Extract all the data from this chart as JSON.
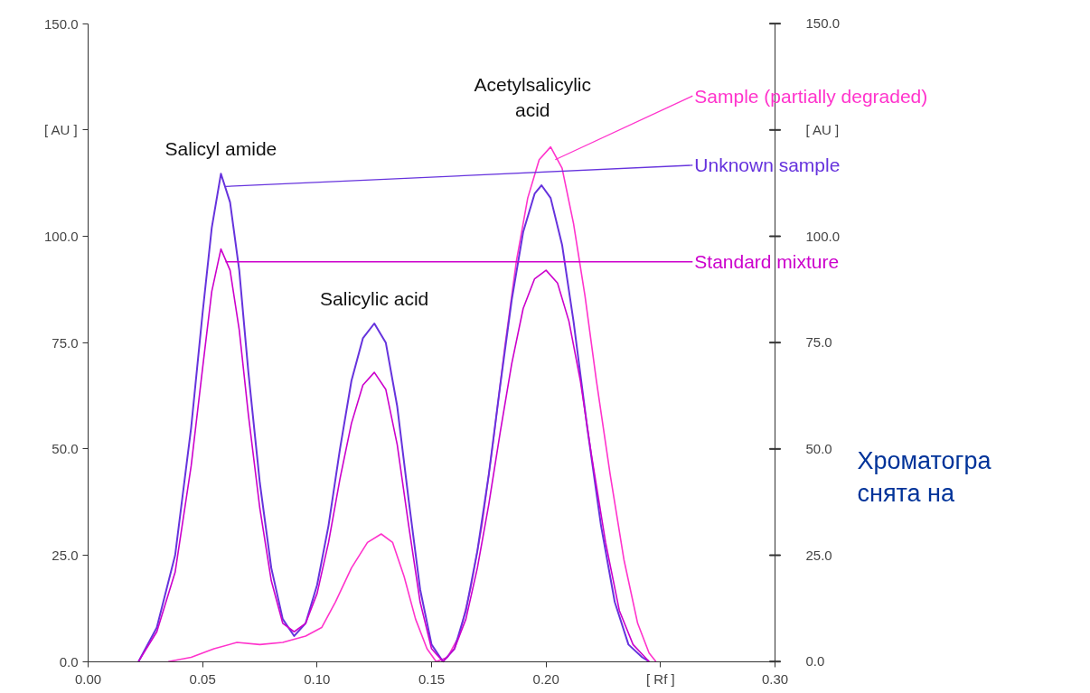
{
  "chart_data": {
    "type": "line",
    "xlim": [
      0,
      0.3
    ],
    "xticks": [
      {
        "value": 0,
        "label": "0.00"
      },
      {
        "value": 0.05,
        "label": "0.05"
      },
      {
        "value": 0.1,
        "label": "0.10"
      },
      {
        "value": 0.15,
        "label": "0.15"
      },
      {
        "value": 0.2,
        "label": "0.20"
      },
      {
        "value": 0.25,
        "label": "[ Rf ]"
      },
      {
        "value": 0.3,
        "label": "0.30"
      }
    ],
    "ylim": [
      0,
      150
    ],
    "yticks": [
      {
        "value": 0,
        "label": "0.0"
      },
      {
        "value": 25,
        "label": "25.0"
      },
      {
        "value": 50,
        "label": "50.0"
      },
      {
        "value": 75,
        "label": "75.0"
      },
      {
        "value": 100,
        "label": "100.0"
      },
      {
        "value": 125,
        "label": "[ AU ]"
      },
      {
        "value": 150,
        "label": "150.0"
      }
    ],
    "y2lim": [
      0,
      150
    ],
    "y2ticks": [
      {
        "value": 0,
        "label": "0.0"
      },
      {
        "value": 25,
        "label": "25.0"
      },
      {
        "value": 50,
        "label": "50.0"
      },
      {
        "value": 75,
        "label": "75.0"
      },
      {
        "value": 100,
        "label": "100.0"
      },
      {
        "value": 125,
        "label": "[ AU ]"
      },
      {
        "value": 150,
        "label": "150.0"
      }
    ],
    "grid": false,
    "marker": "none",
    "line_style": "solid",
    "series": [
      {
        "name": "Sample (partially degraded)",
        "color": "#ff33cc",
        "x": [
          0.035,
          0.045,
          0.055,
          0.065,
          0.075,
          0.085,
          0.095,
          0.102,
          0.108,
          0.115,
          0.122,
          0.128,
          0.133,
          0.138,
          0.143,
          0.148,
          0.152,
          0.157,
          0.162,
          0.167,
          0.172,
          0.177,
          0.182,
          0.187,
          0.192,
          0.197,
          0.202,
          0.207,
          0.212,
          0.217,
          0.222,
          0.228,
          0.234,
          0.24,
          0.245,
          0.248
        ],
        "values": [
          0,
          1,
          3,
          4.5,
          4,
          4.5,
          6,
          8,
          14,
          22,
          28,
          30,
          28,
          20,
          10,
          3,
          0,
          1,
          6,
          17,
          32,
          52,
          74,
          94,
          109,
          118,
          121,
          116,
          103,
          86,
          66,
          44,
          24,
          9,
          2,
          0
        ]
      },
      {
        "name": "Unknown sample",
        "color": "#6633dd",
        "x": [
          0.022,
          0.03,
          0.038,
          0.045,
          0.05,
          0.054,
          0.058,
          0.062,
          0.066,
          0.07,
          0.075,
          0.08,
          0.085,
          0.09,
          0.095,
          0.1,
          0.105,
          0.11,
          0.115,
          0.12,
          0.125,
          0.13,
          0.135,
          0.14,
          0.145,
          0.15,
          0.155,
          0.16,
          0.165,
          0.17,
          0.175,
          0.18,
          0.185,
          0.19,
          0.195,
          0.198,
          0.202,
          0.207,
          0.212,
          0.218,
          0.224,
          0.23,
          0.236,
          0.242,
          0.245
        ],
        "values": [
          0,
          8,
          25,
          55,
          82,
          102,
          114.7,
          108,
          92,
          68,
          42,
          22,
          10,
          6,
          9,
          18,
          32,
          50,
          66,
          76,
          79.5,
          75,
          60,
          38,
          17,
          4,
          0,
          3,
          12,
          26,
          44,
          65,
          85,
          101,
          110,
          112,
          109,
          98,
          80,
          55,
          32,
          14,
          4,
          1,
          0
        ]
      },
      {
        "name": "Standard mixture",
        "color": "#cc00cc",
        "x": [
          0.022,
          0.03,
          0.038,
          0.045,
          0.05,
          0.054,
          0.058,
          0.062,
          0.066,
          0.07,
          0.075,
          0.08,
          0.085,
          0.09,
          0.095,
          0.1,
          0.105,
          0.11,
          0.115,
          0.12,
          0.125,
          0.13,
          0.135,
          0.14,
          0.145,
          0.15,
          0.155,
          0.16,
          0.165,
          0.17,
          0.175,
          0.18,
          0.185,
          0.19,
          0.195,
          0.2,
          0.205,
          0.21,
          0.215,
          0.22,
          0.226,
          0.232,
          0.238,
          0.245
        ],
        "values": [
          0,
          7,
          21,
          46,
          69,
          87,
          97,
          92,
          78,
          58,
          36,
          19,
          9,
          7,
          9,
          16,
          28,
          43,
          56,
          65,
          68,
          64,
          51,
          32,
          14,
          3,
          0,
          3,
          10,
          22,
          37,
          54,
          70,
          83,
          90,
          92,
          89,
          80,
          66,
          48,
          28,
          12,
          4,
          0
        ]
      }
    ],
    "annotations": [
      {
        "text": "Salicyl amide",
        "x": 0.058,
        "y": 114.7
      },
      {
        "text": "Salicylic acid",
        "x": 0.125,
        "y": 79.5
      },
      {
        "text": "Acetylsalicylic\nacid",
        "x": 0.202,
        "y": 121
      },
      "Хроматогра\nснята на"
    ]
  }
}
